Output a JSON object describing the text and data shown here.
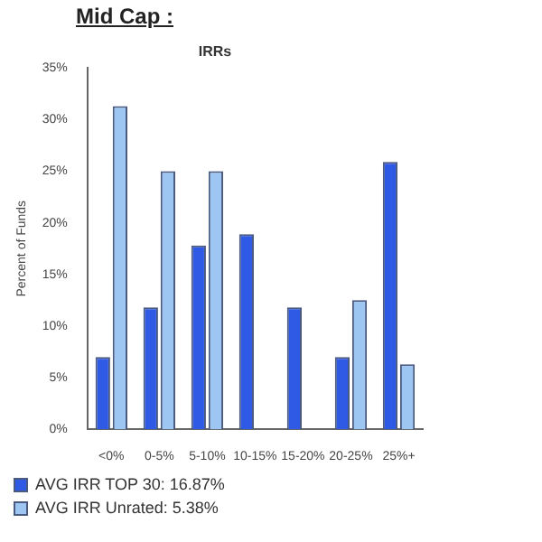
{
  "chart_data": {
    "type": "bar",
    "title": "Mid Cap :",
    "subtitle": "IRRs",
    "ylabel": "Percent of Funds",
    "categories": [
      "<0%",
      "0-5%",
      "5-10%",
      "10-15%",
      "15-20%",
      "20-25%",
      "25%+"
    ],
    "series": [
      {
        "name": "AVG IRR TOP 30: 16.87%",
        "color": "#2f5ae6",
        "values": [
          7,
          11.8,
          17.8,
          18.9,
          11.8,
          7,
          25.9
        ]
      },
      {
        "name": "AVG IRR Unrated: 5.38%",
        "color": "#9dc6f2",
        "values": [
          31.3,
          25,
          25,
          0,
          0,
          12.5,
          6.3
        ]
      }
    ],
    "ylim": [
      0,
      35
    ],
    "yticks": [
      {
        "value": 0,
        "label": "0%"
      },
      {
        "value": 5,
        "label": "5%"
      },
      {
        "value": 10,
        "label": "10%"
      },
      {
        "value": 15,
        "label": "15%"
      },
      {
        "value": 20,
        "label": "20%"
      },
      {
        "value": 25,
        "label": "25%"
      },
      {
        "value": 30,
        "label": "30%"
      },
      {
        "value": 35,
        "label": "35%"
      }
    ],
    "grid": false,
    "legend": "bottom"
  }
}
